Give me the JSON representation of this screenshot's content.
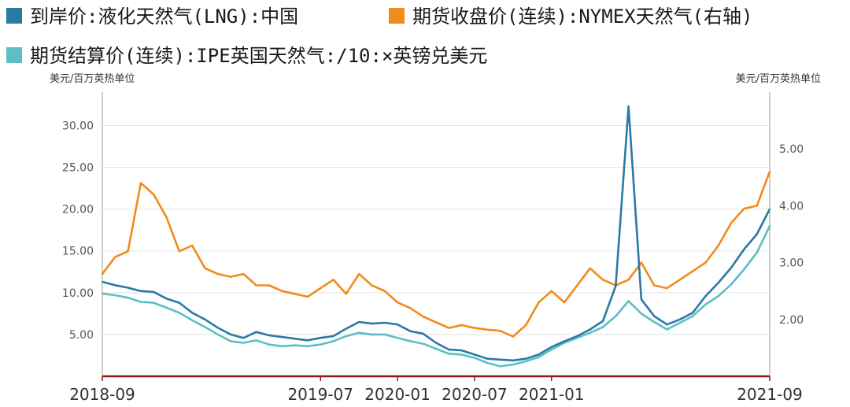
{
  "chart_data": {
    "type": "line",
    "series": [
      {
        "name": "到岸价:液化天然气(LNG):中国",
        "axis": "left",
        "color": "#2a7aa3",
        "values": [
          11.3,
          10.9,
          10.6,
          10.2,
          10.1,
          9.3,
          8.8,
          7.6,
          6.8,
          5.8,
          5.0,
          4.6,
          5.3,
          4.9,
          4.7,
          4.5,
          4.3,
          4.6,
          4.8,
          5.7,
          6.5,
          6.3,
          6.4,
          6.2,
          5.4,
          5.1,
          4.0,
          3.2,
          3.1,
          2.6,
          2.1,
          2.0,
          1.9,
          2.1,
          2.6,
          3.5,
          4.2,
          4.8,
          5.6,
          6.6,
          10.8,
          32.3,
          9.2,
          7.2,
          6.2,
          6.8,
          7.6,
          9.6,
          11.2,
          13.0,
          15.2,
          17.0,
          20.0
        ]
      },
      {
        "name": "期货收盘价(连续):NYMEX天然气(右轴)",
        "axis": "right",
        "color": "#f28a1c",
        "values": [
          2.8,
          3.1,
          3.2,
          4.4,
          4.2,
          3.8,
          3.2,
          3.3,
          2.9,
          2.8,
          2.75,
          2.8,
          2.6,
          2.6,
          2.5,
          2.45,
          2.4,
          2.55,
          2.7,
          2.45,
          2.8,
          2.6,
          2.5,
          2.3,
          2.2,
          2.05,
          1.95,
          1.85,
          1.9,
          1.85,
          1.82,
          1.8,
          1.7,
          1.9,
          2.3,
          2.5,
          2.3,
          2.6,
          2.9,
          2.7,
          2.6,
          2.7,
          3.0,
          2.6,
          2.55,
          2.7,
          2.85,
          3.0,
          3.3,
          3.7,
          3.95,
          4.0,
          4.6
        ]
      },
      {
        "name": "期货结算价(连续):IPE英国天然气:/10:×英镑兑美元",
        "axis": "left",
        "color": "#5bbfc3",
        "values": [
          9.9,
          9.7,
          9.4,
          8.9,
          8.8,
          8.2,
          7.6,
          6.7,
          5.9,
          5.0,
          4.2,
          4.0,
          4.3,
          3.8,
          3.6,
          3.7,
          3.6,
          3.8,
          4.2,
          4.8,
          5.2,
          5.0,
          5.0,
          4.6,
          4.2,
          3.9,
          3.3,
          2.7,
          2.6,
          2.2,
          1.6,
          1.2,
          1.4,
          1.8,
          2.3,
          3.2,
          4.0,
          4.6,
          5.2,
          5.9,
          7.2,
          9.0,
          7.5,
          6.5,
          5.6,
          6.4,
          7.2,
          8.6,
          9.6,
          11.0,
          12.8,
          14.8,
          18.0
        ]
      }
    ],
    "x_tick_labels": [
      "2018-09",
      "2019-07",
      "2020-01",
      "2020-07",
      "2021-01",
      "2021-09"
    ],
    "x_tick_index": [
      0,
      17,
      23,
      29,
      35,
      52
    ],
    "y_left": {
      "unit_label": "美元/百万英热单位",
      "ylim": [
        0,
        34
      ],
      "ticks": [
        "5.00",
        "10.00",
        "15.00",
        "20.00",
        "25.00",
        "30.00"
      ],
      "tick_values": [
        5,
        10,
        15,
        20,
        25,
        30
      ]
    },
    "y_right": {
      "unit_label": "美元/百万英热单位",
      "ylim": [
        1.0,
        6.0
      ],
      "ticks": [
        "2.00",
        "3.00",
        "4.00",
        "5.00"
      ],
      "tick_values": [
        2,
        3,
        4,
        5
      ]
    },
    "grid": true,
    "legend_placement": "top"
  },
  "legend": {
    "items": [
      {
        "label": "到岸价:液化天然气(LNG):中国",
        "color": "#2a7aa3"
      },
      {
        "label": "期货收盘价(连续):NYMEX天然气(右轴)",
        "color": "#f28a1c"
      },
      {
        "label": "期货结算价(连续):IPE英国天然气:/10:×英镑兑美元",
        "color": "#5bbfc3"
      }
    ]
  },
  "axis_units": {
    "left": "美元/百万英热单位",
    "right": "美元/百万英热单位"
  },
  "colors": {
    "axis": "#8b1a1a",
    "grid": "#e3e3e3"
  }
}
